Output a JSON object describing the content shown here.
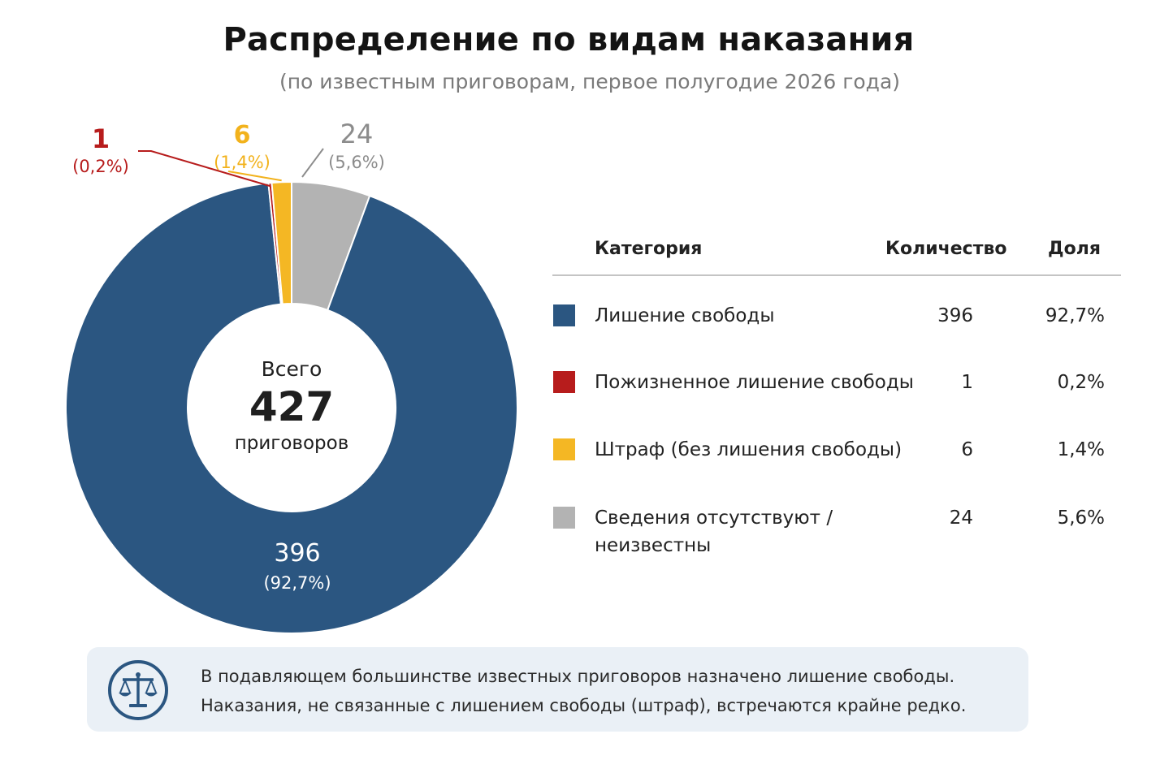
{
  "title": "Распределение по видам наказания",
  "subtitle": "(по известным приговорам, первое полугодие 2026 года)",
  "center": {
    "top": "Всего",
    "value": "427",
    "bottom": "приговоров"
  },
  "legend": {
    "header_category": "Категория",
    "header_count": "Количество",
    "header_share": "Доля"
  },
  "chart_data": {
    "type": "pie",
    "variant": "donut",
    "total": 427,
    "categories": [
      "Лишение свободы",
      "Пожизненное лишение свободы",
      "Штраф (без лишения свободы)",
      "Сведения отсутствуют / неизвестны"
    ],
    "values": [
      396,
      1,
      6,
      24
    ],
    "shares": [
      "92,7%",
      "0,2%",
      "1,4%",
      "5,6%"
    ],
    "colors": [
      "#2b5681",
      "#b71c1c",
      "#f4b724",
      "#b3b3b3"
    ],
    "label_colors": [
      "#ffffff",
      "#b71c1c",
      "#f2b21c",
      "#8c8c8c"
    ],
    "slice_labels": [
      {
        "value": "396",
        "share": "(92,7%)"
      },
      {
        "value": "1",
        "share": "(0,2%)"
      },
      {
        "value": "6",
        "share": "(1,4%)"
      },
      {
        "value": "24",
        "share": "(5,6%)"
      }
    ]
  },
  "note": {
    "icon": "scales-icon",
    "line1": "В подавляющем большинстве известных приговоров назначено лишение свободы.",
    "line2": "Наказания, не связанные с лишением свободы (штраф), встречаются крайне редко."
  }
}
